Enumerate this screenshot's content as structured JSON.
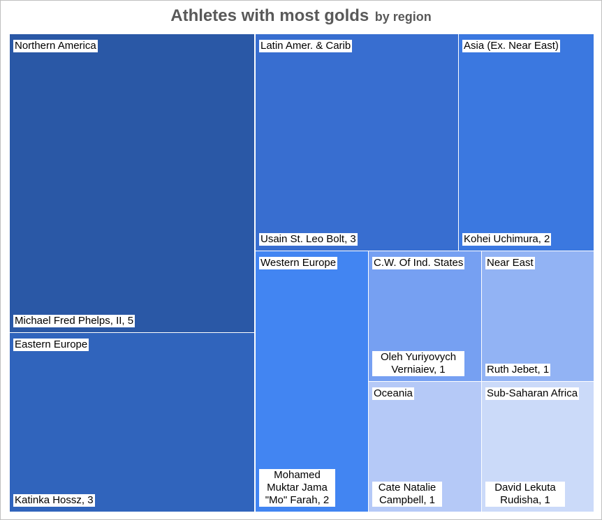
{
  "chart_data": {
    "type": "treemap",
    "title": "Athletes with most golds",
    "subtitle": "by region",
    "tiles": [
      {
        "region": "Northern America",
        "athlete": "Michael Fred Phelps, II, 5",
        "value": 5,
        "color": "#2a58a6"
      },
      {
        "region": "Eastern Europe",
        "athlete": "Katinka Hossz, 3",
        "value": 3,
        "color": "#3064bc"
      },
      {
        "region": "Latin Amer. & Carib",
        "athlete": "Usain St. Leo Bolt, 3",
        "value": 3,
        "color": "#386ed0"
      },
      {
        "region": "Asia (Ex. Near East)",
        "athlete": "Kohei Uchimura, 2",
        "value": 2,
        "color": "#3b78e0"
      },
      {
        "region": "Western Europe",
        "athlete": "Mohamed Muktar Jama \"Mo\" Farah, 2",
        "value": 2,
        "color": "#4285f2"
      },
      {
        "region": "C.W. Of Ind. States",
        "athlete": "Oleh Yuriyovych Verniaiev, 1",
        "value": 1,
        "color": "#76a0f2"
      },
      {
        "region": "Near East",
        "athlete": "Ruth Jebet, 1",
        "value": 1,
        "color": "#92b3f4"
      },
      {
        "region": "Oceania",
        "athlete": "Cate Natalie Campbell, 1",
        "value": 1,
        "color": "#b5c9f7"
      },
      {
        "region": "Sub-Saharan Africa",
        "athlete": "David Lekuta Rudisha, 1",
        "value": 1,
        "color": "#cbdaf9"
      }
    ]
  }
}
